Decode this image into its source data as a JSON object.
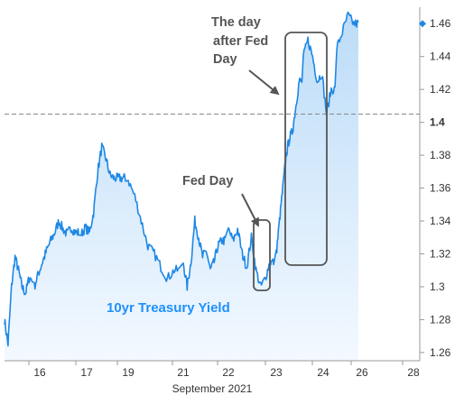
{
  "chart_data": {
    "type": "line",
    "xlabel": "September 2021",
    "ylabel": "",
    "x_tick_labels": [
      "16",
      "17",
      "19",
      "21",
      "22",
      "23",
      "24",
      "26",
      "28"
    ],
    "y_tick_labels": [
      "1.26",
      "1.28",
      "1.3",
      "1.32",
      "1.34",
      "1.36",
      "1.38",
      "1.4",
      "1.42",
      "1.44",
      "1.46"
    ],
    "ylim": [
      1.255,
      1.47
    ],
    "reference_line": {
      "value": 1.405,
      "style": "dashed",
      "color": "#888888"
    },
    "current_value_marker": 1.46,
    "series": [
      {
        "name": "10yr Treasury Yield",
        "color": "#1e88e5",
        "fill": "#cfe6fb",
        "points": [
          [
            "Sep 15",
            1.28
          ],
          [
            "Sep 15",
            1.265
          ],
          [
            "Sep 15",
            1.3
          ],
          [
            "Sep 15",
            1.318
          ],
          [
            "Sep 15",
            1.31
          ],
          [
            "Sep 15",
            1.3
          ],
          [
            "Sep 15",
            1.296
          ],
          [
            "Sep 15",
            1.305
          ],
          [
            "Sep 16",
            1.3
          ],
          [
            "Sep 16",
            1.308
          ],
          [
            "Sep 16",
            1.315
          ],
          [
            "Sep 16",
            1.322
          ],
          [
            "Sep 16",
            1.328
          ],
          [
            "Sep 16",
            1.333
          ],
          [
            "Sep 16",
            1.34
          ],
          [
            "Sep 16",
            1.335
          ],
          [
            "Sep 16",
            1.332
          ],
          [
            "Sep 16",
            1.336
          ],
          [
            "Sep 16",
            1.333
          ],
          [
            "Sep 17",
            1.332
          ],
          [
            "Sep 17",
            1.336
          ],
          [
            "Sep 17",
            1.333
          ],
          [
            "Sep 17",
            1.345
          ],
          [
            "Sep 17",
            1.37
          ],
          [
            "Sep 17",
            1.385
          ],
          [
            "Sep 17",
            1.378
          ],
          [
            "Sep 17",
            1.368
          ],
          [
            "Sep 17",
            1.366
          ],
          [
            "Sep 17",
            1.366
          ],
          [
            "Sep 17",
            1.366
          ],
          [
            "Sep 19",
            1.365
          ],
          [
            "Sep 19",
            1.355
          ],
          [
            "Sep 19",
            1.34
          ],
          [
            "Sep 19",
            1.325
          ],
          [
            "Sep 19",
            1.32
          ],
          [
            "Sep 19",
            1.312
          ],
          [
            "Sep 19",
            1.305
          ],
          [
            "Sep 19",
            1.31
          ],
          [
            "Sep 21",
            1.315
          ],
          [
            "Sep 21",
            1.3
          ],
          [
            "Sep 21",
            1.315
          ],
          [
            "Sep 21",
            1.34
          ],
          [
            "Sep 21",
            1.33
          ],
          [
            "Sep 21",
            1.318
          ],
          [
            "Sep 21",
            1.322
          ],
          [
            "Sep 21",
            1.31
          ],
          [
            "Sep 21",
            1.315
          ],
          [
            "Sep 21",
            1.325
          ],
          [
            "Sep 21",
            1.328
          ],
          [
            "Sep 22",
            1.335
          ],
          [
            "Sep 22",
            1.328
          ],
          [
            "Sep 22",
            1.335
          ],
          [
            "Sep 22",
            1.32
          ],
          [
            "Sep 22",
            1.312
          ],
          [
            "Sep 22",
            1.33
          ],
          [
            "Sep 22",
            1.31
          ],
          [
            "Sep 22",
            1.3
          ],
          [
            "Sep 22",
            1.305
          ],
          [
            "Sep 22",
            1.315
          ],
          [
            "Sep 23",
            1.32
          ],
          [
            "Sep 23",
            1.34
          ],
          [
            "Sep 23",
            1.36
          ],
          [
            "Sep 23",
            1.38
          ],
          [
            "Sep 23",
            1.39
          ],
          [
            "Sep 23",
            1.395
          ],
          [
            "Sep 23",
            1.41
          ],
          [
            "Sep 23",
            1.425
          ],
          [
            "Sep 24",
            1.44
          ],
          [
            "Sep 24",
            1.45
          ],
          [
            "Sep 24",
            1.44
          ],
          [
            "Sep 24",
            1.425
          ],
          [
            "Sep 24",
            1.43
          ],
          [
            "Sep 24",
            1.405
          ],
          [
            "Sep 24",
            1.42
          ],
          [
            "Sep 25",
            1.445
          ],
          [
            "Sep 25",
            1.455
          ],
          [
            "Sep 25",
            1.465
          ],
          [
            "Sep 25",
            1.46
          ]
        ]
      }
    ],
    "annotations": [
      {
        "text": "Fed Day"
      },
      {
        "text_lines": [
          "The day",
          "after Fed",
          "Day"
        ]
      }
    ]
  },
  "colors": {
    "line": "#1e88e5",
    "fill_top": "#bcdcf8",
    "fill_bottom": "#f3f9ff",
    "axis": "#999999",
    "annotation": "#555555",
    "reference": "#888888"
  }
}
